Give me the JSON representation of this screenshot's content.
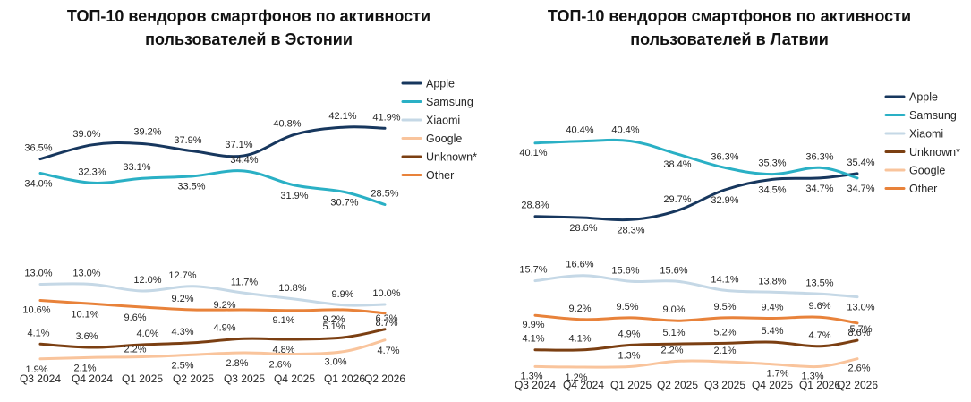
{
  "chart_data": [
    {
      "type": "line",
      "title_lines": [
        "ТОП-10 вендоров смартфонов по активности",
        "пользователей в Эстонии"
      ],
      "categories": [
        "Q3 2024",
        "Q4 2024",
        "Q1 2025",
        "Q2 2025",
        "Q3 2025",
        "Q4 2025",
        "Q1 2026",
        "Q2 2026"
      ],
      "series": [
        {
          "name": "Apple",
          "color": "#17375e",
          "values": [
            36.5,
            39.0,
            39.2,
            37.9,
            37.1,
            40.8,
            42.1,
            41.9
          ],
          "labels": [
            "36.5%",
            "39.0%",
            "39.2%",
            "37.9%",
            "37.1%",
            "40.8%",
            "42.1%",
            "41.9%"
          ]
        },
        {
          "name": "Samsung",
          "color": "#2ab0c5",
          "values": [
            34.0,
            32.3,
            33.1,
            33.5,
            34.4,
            31.9,
            30.7,
            28.5
          ],
          "labels": [
            "34.0%",
            "32.3%",
            "33.1%",
            "33.5%",
            "34.4%",
            "31.9%",
            "30.7%",
            "28.5%"
          ]
        },
        {
          "name": "Xiaomi",
          "color": "#c5d8e6",
          "values": [
            13.0,
            13.0,
            12.0,
            12.7,
            11.7,
            10.8,
            9.9,
            10.0
          ],
          "labels": [
            "13.0%",
            "13.0%",
            "12.0%",
            "12.7%",
            "11.7%",
            "10.8%",
            "9.9%",
            "10.0%"
          ]
        },
        {
          "name": "Google",
          "color": "#f9c49c",
          "values": [
            1.9,
            2.1,
            2.2,
            2.5,
            2.8,
            2.6,
            3.0,
            4.7
          ],
          "labels": [
            "1.9%",
            "2.1%",
            "2.2%",
            "2.5%",
            "2.8%",
            "2.6%",
            "3.0%",
            "4.7%"
          ]
        },
        {
          "name": "Unknown*",
          "color": "#7b3f12",
          "values": [
            4.1,
            3.6,
            4.0,
            4.3,
            4.9,
            4.8,
            5.1,
            6.3
          ],
          "labels": [
            "4.1%",
            "3.6%",
            "4.0%",
            "4.3%",
            "4.9%",
            "4.8%",
            "5.1%",
            "6.3%"
          ]
        },
        {
          "name": "Other",
          "color": "#e8823a",
          "values": [
            10.6,
            10.1,
            9.6,
            9.2,
            9.2,
            9.1,
            9.2,
            8.7
          ],
          "labels": [
            "10.6%",
            "10.1%",
            "9.6%",
            "9.2%",
            "9.2%",
            "9.1%",
            "9.2%",
            "8.7%"
          ]
        }
      ],
      "axis_break": {
        "lower_range": [
          0,
          14
        ],
        "upper_range": [
          27,
          44
        ]
      },
      "y_axis_shown": false,
      "grid": false,
      "legend_position": "right"
    },
    {
      "type": "line",
      "title_lines": [
        "ТОП-10 вендоров смартфонов по активности",
        "пользователей в Латвии"
      ],
      "categories": [
        "Q3 2024",
        "Q4 2024",
        "Q1 2025",
        "Q2 2025",
        "Q3 2025",
        "Q4 2025",
        "Q1 2026",
        "Q2 2026"
      ],
      "series": [
        {
          "name": "Apple",
          "color": "#17375e",
          "values": [
            28.8,
            28.6,
            28.3,
            29.7,
            32.9,
            34.5,
            34.7,
            35.4
          ],
          "labels": [
            "28.8%",
            "28.6%",
            "28.3%",
            "29.7%",
            "32.9%",
            "34.5%",
            "34.7%",
            "35.4%"
          ]
        },
        {
          "name": "Samsung",
          "color": "#2ab0c5",
          "values": [
            40.1,
            40.4,
            40.4,
            38.4,
            36.3,
            35.3,
            36.3,
            34.7
          ],
          "labels": [
            "40.1%",
            "40.4%",
            "40.4%",
            "38.4%",
            "36.3%",
            "35.3%",
            "36.3%",
            "34.7%"
          ]
        },
        {
          "name": "Xiaomi",
          "color": "#c5d8e6",
          "values": [
            15.7,
            16.6,
            15.6,
            15.6,
            14.1,
            13.8,
            13.5,
            13.0
          ],
          "labels": [
            "15.7%",
            "16.6%",
            "15.6%",
            "15.6%",
            "14.1%",
            "13.8%",
            "13.5%",
            "13.0%"
          ]
        },
        {
          "name": "Unknown*",
          "color": "#7b3f12",
          "values": [
            4.1,
            4.1,
            4.9,
            5.1,
            5.2,
            5.4,
            4.7,
            5.7
          ],
          "labels": [
            "4.1%",
            "4.1%",
            "4.9%",
            "5.1%",
            "5.2%",
            "5.4%",
            "4.7%",
            "5.7%"
          ]
        },
        {
          "name": "Google",
          "color": "#f9c49c",
          "values": [
            1.3,
            1.2,
            1.3,
            2.2,
            2.1,
            1.7,
            1.3,
            2.6
          ],
          "labels": [
            "1.3%",
            "1.2%",
            "1.3%",
            "2.2%",
            "2.1%",
            "1.7%",
            "1.3%",
            "2.6%"
          ]
        },
        {
          "name": "Other",
          "color": "#e8823a",
          "values": [
            9.9,
            9.2,
            9.5,
            9.0,
            9.5,
            9.4,
            9.6,
            8.6
          ],
          "labels": [
            "9.9%",
            "9.2%",
            "9.5%",
            "9.0%",
            "9.5%",
            "9.4%",
            "9.6%",
            "8.6%"
          ]
        }
      ],
      "axis_break": {
        "lower_range": [
          0,
          17
        ],
        "upper_range": [
          26,
          42
        ]
      },
      "y_axis_shown": false,
      "grid": false,
      "legend_position": "right"
    }
  ]
}
